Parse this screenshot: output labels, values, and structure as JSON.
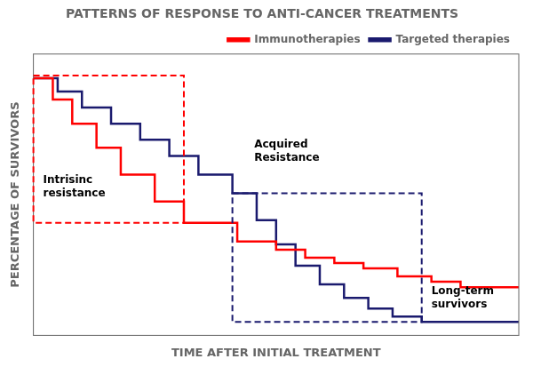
{
  "chart_data": {
    "type": "line",
    "title": "PATTERNS OF RESPONSE TO ANTI-CANCER TREATMENTS",
    "x_label": "TIME AFTER INITIAL TREATMENT",
    "y_label": "PERCENTAGE OF SURVIVORS",
    "series": [
      {
        "name": "Immunotherapies",
        "color": "#FF0000",
        "x": [
          0,
          0.04,
          0.04,
          0.08,
          0.08,
          0.13,
          0.13,
          0.18,
          0.18,
          0.25,
          0.25,
          0.31,
          0.31,
          0.42,
          0.42,
          0.5,
          0.5,
          0.56,
          0.56,
          0.62,
          0.62,
          0.68,
          0.68,
          0.75,
          0.75,
          0.82,
          0.82,
          0.88,
          0.88,
          1.0
        ],
        "values": [
          0.96,
          0.96,
          0.88,
          0.88,
          0.79,
          0.79,
          0.7,
          0.7,
          0.6,
          0.6,
          0.5,
          0.5,
          0.42,
          0.42,
          0.35,
          0.35,
          0.32,
          0.32,
          0.29,
          0.29,
          0.27,
          0.27,
          0.25,
          0.25,
          0.22,
          0.22,
          0.2,
          0.2,
          0.18,
          0.18
        ]
      },
      {
        "name": "Targeted therapies",
        "color": "#1a1a6e",
        "x": [
          0,
          0.05,
          0.05,
          0.1,
          0.1,
          0.16,
          0.16,
          0.22,
          0.22,
          0.28,
          0.28,
          0.34,
          0.34,
          0.41,
          0.41,
          0.46,
          0.46,
          0.5,
          0.5,
          0.54,
          0.54,
          0.59,
          0.59,
          0.64,
          0.64,
          0.69,
          0.69,
          0.74,
          0.74,
          0.8,
          0.8,
          1.0
        ],
        "values": [
          0.96,
          0.96,
          0.91,
          0.91,
          0.85,
          0.85,
          0.79,
          0.79,
          0.73,
          0.73,
          0.67,
          0.67,
          0.6,
          0.6,
          0.53,
          0.53,
          0.43,
          0.43,
          0.34,
          0.34,
          0.26,
          0.26,
          0.19,
          0.19,
          0.14,
          0.14,
          0.1,
          0.1,
          0.07,
          0.07,
          0.05,
          0.05
        ]
      }
    ],
    "boxes": [
      {
        "x0": 0.0,
        "x1": 0.31,
        "y0": 0.42,
        "y1": 0.97,
        "color": "#FF0000",
        "line_style": "dashed"
      },
      {
        "x0": 0.41,
        "x1": 0.8,
        "y0": 0.05,
        "y1": 0.53,
        "color": "#1a1a6e",
        "line_style": "dashed"
      }
    ],
    "annotations": [
      {
        "text": "Intrisinc\nresistance",
        "x": 0.02,
        "y": 0.55
      },
      {
        "text": "Acquired\nResistance",
        "x": 0.455,
        "y": 0.73
      },
      {
        "text": "Long-term\nsurvivors",
        "x": 0.82,
        "y": 0.135
      }
    ],
    "xlim": [
      0,
      1.0
    ],
    "ylim": [
      0,
      1.05
    ],
    "xticks": [],
    "yticks": [],
    "tick_labels": false,
    "grid": false,
    "legend": "upper right"
  }
}
